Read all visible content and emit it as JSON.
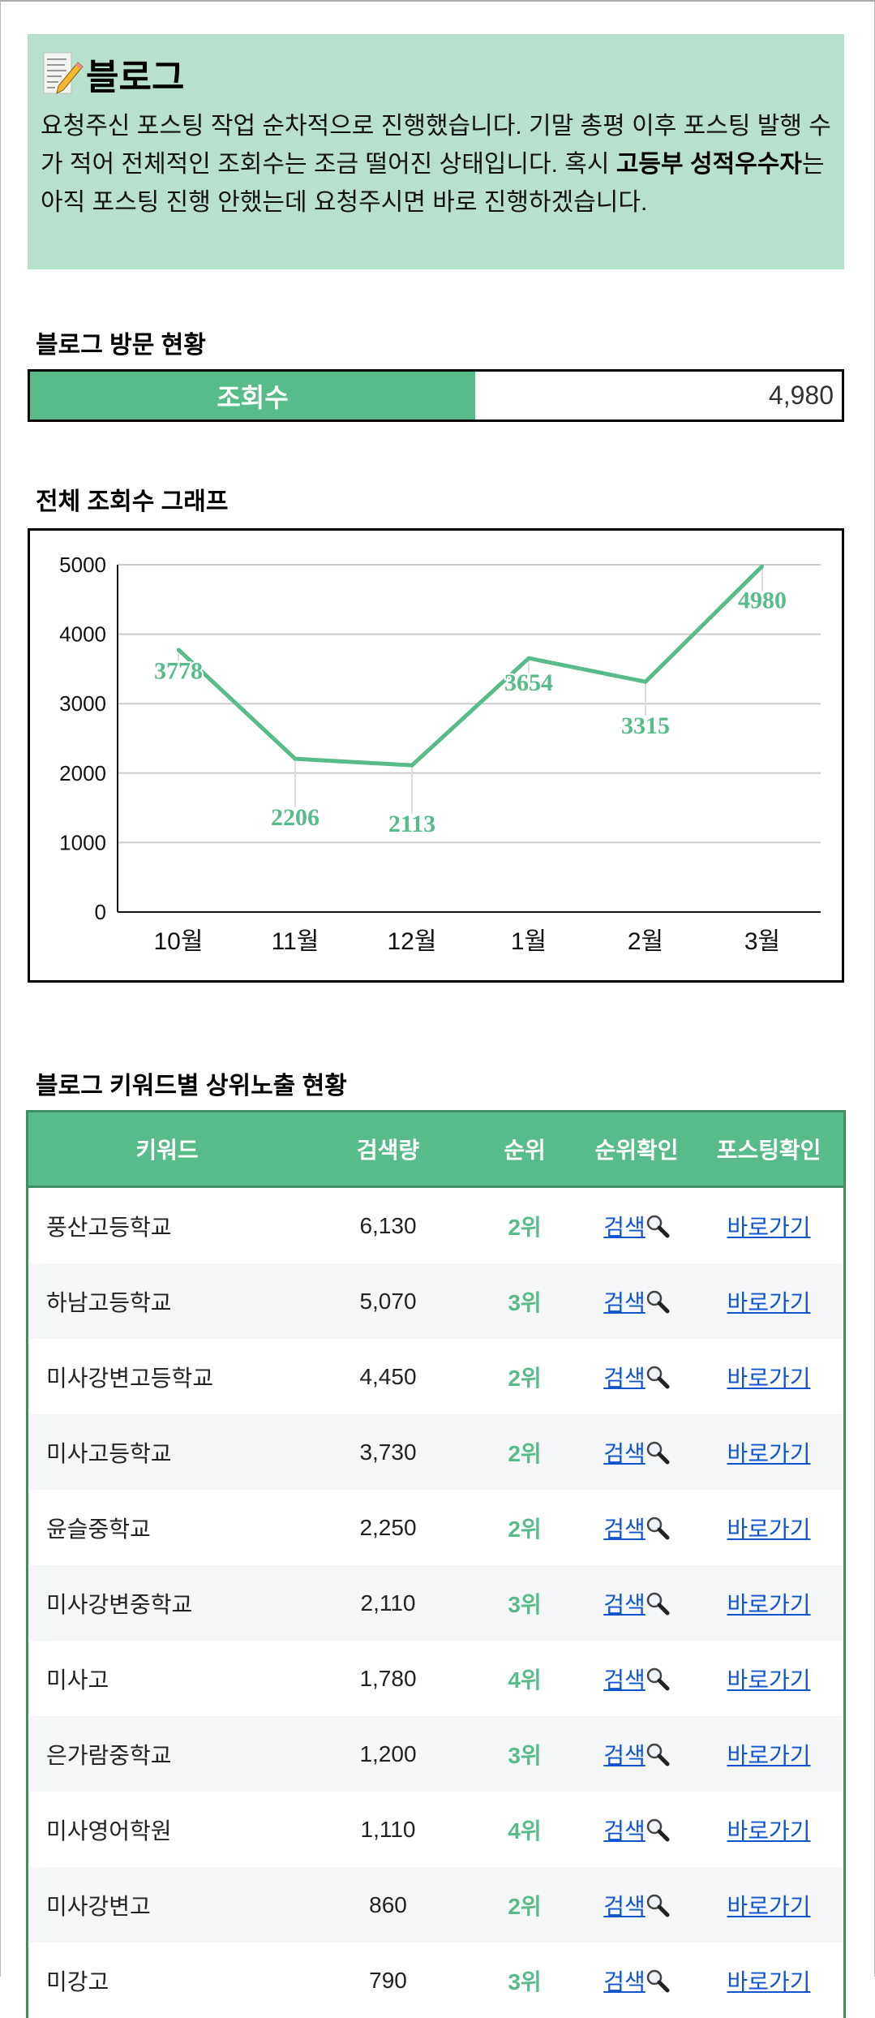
{
  "header": {
    "icon": "memo-icon",
    "title": "블로그",
    "paragraph": [
      {
        "text": "요청주신 포스팅 작업 순차적으로 진행했습니다. 기말 총평 이후 포스팅 발행 수가 적어 전체적인 조회수는 조금 떨어진 상태입니다. 혹시 ",
        "bold": false
      },
      {
        "text": "고등부 성적우수자",
        "bold": true
      },
      {
        "text": "는 아직 포스팅 진행 안했는데 요청주시면 바로 진행하겠습니다.",
        "bold": false
      }
    ]
  },
  "visits": {
    "heading": "블로그 방문 현황",
    "label": "조회수",
    "value": "4,980"
  },
  "chart_heading": "전체 조회수 그래프",
  "chart_data": {
    "type": "line",
    "title": "",
    "xlabel": "",
    "ylabel": "",
    "categories": [
      "10월",
      "11월",
      "12월",
      "1월",
      "2월",
      "3월"
    ],
    "values": [
      3778,
      2206,
      2113,
      3654,
      3315,
      4980
    ],
    "yticks": [
      0,
      1000,
      2000,
      3000,
      4000,
      5000
    ],
    "ylim": [
      0,
      5000
    ],
    "grid": true,
    "color": "#57bb8a"
  },
  "keywords": {
    "heading": "블로그 키워드별 상위노출 현황",
    "columns": [
      "키워드",
      "검색량",
      "순위",
      "순위확인",
      "포스팅확인"
    ],
    "search_label": "검색",
    "goto_label": "바로가기",
    "rows": [
      {
        "keyword": "풍산고등학교",
        "volume": "6,130",
        "rank": "2위"
      },
      {
        "keyword": "하남고등학교",
        "volume": "5,070",
        "rank": "3위"
      },
      {
        "keyword": "미사강변고등학교",
        "volume": "4,450",
        "rank": "2위"
      },
      {
        "keyword": "미사고등학교",
        "volume": "3,730",
        "rank": "2위"
      },
      {
        "keyword": "윤슬중학교",
        "volume": "2,250",
        "rank": "2위"
      },
      {
        "keyword": "미사강변중학교",
        "volume": "2,110",
        "rank": "3위"
      },
      {
        "keyword": "미사고",
        "volume": "1,780",
        "rank": "4위"
      },
      {
        "keyword": "은가람중학교",
        "volume": "1,200",
        "rank": "3위"
      },
      {
        "keyword": "미사영어학원",
        "volume": "1,110",
        "rank": "4위"
      },
      {
        "keyword": "미사강변고",
        "volume": "860",
        "rank": "2위"
      },
      {
        "keyword": "미강고",
        "volume": "790",
        "rank": "3위"
      }
    ]
  },
  "colors": {
    "accent": "#57bb8a",
    "header_bg": "#b7e1cd",
    "link": "#1155cc",
    "table_border": "#3e8e64",
    "alt_row": "#f5f6f8"
  }
}
